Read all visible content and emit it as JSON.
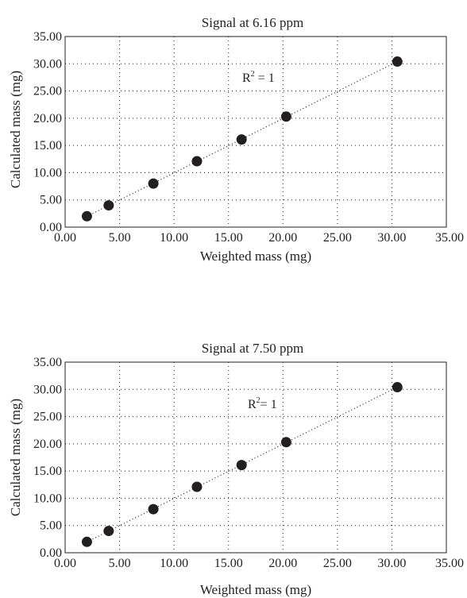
{
  "chart_data": [
    {
      "type": "scatter",
      "title": "Signal at 6.16 ppm",
      "xlabel": "Weighted mass (mg)",
      "ylabel": "Calculated mass (mg)",
      "xlim": [
        0,
        35
      ],
      "ylim": [
        0,
        35
      ],
      "xticks": [
        "0.00",
        "5.00",
        "10.00",
        "15.00",
        "20.00",
        "25.00",
        "30.00",
        "35.00"
      ],
      "yticks": [
        "0.00",
        "5.00",
        "10.00",
        "15.00",
        "20.00",
        "25.00",
        "30.00",
        "35.00"
      ],
      "grid": true,
      "trendline": "linear",
      "annotation": {
        "text": "R",
        "sup": "2",
        "rest": " = 1"
      },
      "series": [
        {
          "x": [
            2.0,
            4.0,
            8.1,
            12.1,
            16.2,
            20.3,
            30.5
          ],
          "y": [
            2.0,
            4.0,
            8.0,
            12.1,
            16.1,
            20.3,
            30.4
          ]
        }
      ]
    },
    {
      "type": "scatter",
      "title": "Signal at 7.50 ppm",
      "xlabel": "Weighted mass (mg)",
      "ylabel": "Calculated mass (mg)",
      "xlim": [
        0,
        35
      ],
      "ylim": [
        0,
        35
      ],
      "xticks": [
        "0.00",
        "5.00",
        "10.00",
        "15.00",
        "20.00",
        "25.00",
        "30.00",
        "35.00"
      ],
      "yticks": [
        "0.00",
        "5.00",
        "10.00",
        "15.00",
        "20.00",
        "25.00",
        "30.00",
        "35.00"
      ],
      "grid": true,
      "trendline": "linear",
      "annotation": {
        "text": "R",
        "sup": "2",
        "rest": "= 1"
      },
      "series": [
        {
          "x": [
            2.0,
            4.0,
            8.1,
            12.1,
            16.2,
            20.3,
            30.5
          ],
          "y": [
            2.0,
            4.0,
            8.0,
            12.1,
            16.1,
            20.3,
            30.4
          ]
        }
      ]
    }
  ]
}
